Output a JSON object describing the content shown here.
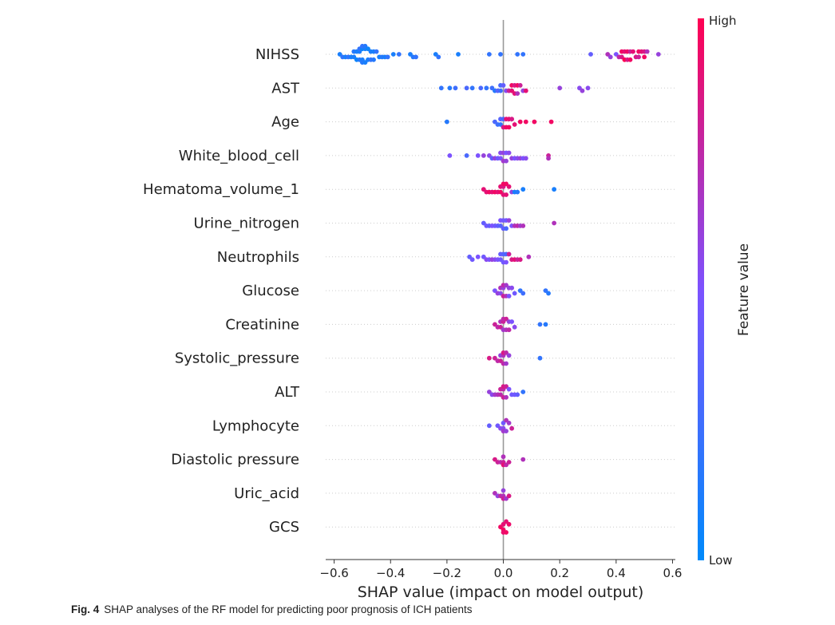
{
  "caption": {
    "label": "Fig. 4",
    "text": "SHAP analyses of the RF model for predicting poor prognosis of ICH patients"
  },
  "chart_data": {
    "type": "scatter",
    "subtype": "shap-beeswarm-summary",
    "xlabel": "SHAP value (impact on model output)",
    "xlim": [
      -0.63,
      0.61
    ],
    "xticks": [
      -0.6,
      -0.4,
      -0.2,
      0.0,
      0.2,
      0.4,
      0.6
    ],
    "xtick_labels": [
      "−0.6",
      "−0.4",
      "−0.2",
      "0.0",
      "0.2",
      "0.4",
      "0.6"
    ],
    "grid": false,
    "colorbar": {
      "label": "Feature value",
      "high_label": "High",
      "low_label": "Low",
      "low_color": "#008afb",
      "mid_color": "#7c52ff",
      "high_color": "#ff0052"
    },
    "features": [
      {
        "name": "NIHSS",
        "points": [
          [
            -0.58,
            0.1
          ],
          [
            -0.57,
            0.2
          ],
          [
            -0.56,
            0.1
          ],
          [
            -0.55,
            0.2
          ],
          [
            -0.54,
            0.1
          ],
          [
            -0.53,
            0.1
          ],
          [
            -0.53,
            0.15
          ],
          [
            -0.52,
            0.1
          ],
          [
            -0.52,
            0.05
          ],
          [
            -0.51,
            0.1
          ],
          [
            -0.51,
            0.15
          ],
          [
            -0.51,
            0.2
          ],
          [
            -0.5,
            0.1
          ],
          [
            -0.5,
            0.05
          ],
          [
            -0.5,
            0.15
          ],
          [
            -0.5,
            0.2
          ],
          [
            -0.49,
            0.1
          ],
          [
            -0.49,
            0.1
          ],
          [
            -0.49,
            0.15
          ],
          [
            -0.48,
            0.1
          ],
          [
            -0.48,
            0.05
          ],
          [
            -0.47,
            0.1
          ],
          [
            -0.47,
            0.2
          ],
          [
            -0.46,
            0.1
          ],
          [
            -0.46,
            0.15
          ],
          [
            -0.45,
            0.2
          ],
          [
            -0.44,
            0.1
          ],
          [
            -0.43,
            0.15
          ],
          [
            -0.42,
            0.1
          ],
          [
            -0.41,
            0.2
          ],
          [
            -0.39,
            0.1
          ],
          [
            -0.37,
            0.2
          ],
          [
            -0.33,
            0.1
          ],
          [
            -0.32,
            0.15
          ],
          [
            -0.31,
            0.2
          ],
          [
            -0.24,
            0.1
          ],
          [
            -0.23,
            0.2
          ],
          [
            -0.16,
            0.1
          ],
          [
            -0.05,
            0.2
          ],
          [
            -0.01,
            0.2
          ],
          [
            0.05,
            0.2
          ],
          [
            0.07,
            0.2
          ],
          [
            0.31,
            0.4
          ],
          [
            0.37,
            0.7
          ],
          [
            0.38,
            0.6
          ],
          [
            0.4,
            0.5
          ],
          [
            0.41,
            0.75
          ],
          [
            0.42,
            0.85
          ],
          [
            0.42,
            0.95
          ],
          [
            0.43,
            0.9
          ],
          [
            0.43,
            1.0
          ],
          [
            0.44,
            0.95
          ],
          [
            0.44,
            0.85
          ],
          [
            0.45,
            0.8
          ],
          [
            0.45,
            0.95
          ],
          [
            0.46,
            0.9
          ],
          [
            0.47,
            0.85
          ],
          [
            0.48,
            0.8
          ],
          [
            0.48,
            0.95
          ],
          [
            0.49,
            0.9
          ],
          [
            0.5,
            0.95
          ],
          [
            0.5,
            0.85
          ],
          [
            0.51,
            0.7
          ],
          [
            0.55,
            0.6
          ]
        ]
      },
      {
        "name": "AST",
        "points": [
          [
            -0.22,
            0.2
          ],
          [
            -0.19,
            0.15
          ],
          [
            -0.17,
            0.25
          ],
          [
            -0.13,
            0.3
          ],
          [
            -0.11,
            0.2
          ],
          [
            -0.08,
            0.3
          ],
          [
            -0.06,
            0.2
          ],
          [
            -0.04,
            0.25
          ],
          [
            -0.03,
            0.15
          ],
          [
            -0.02,
            0.35
          ],
          [
            -0.01,
            0.25
          ],
          [
            -0.01,
            0.3
          ],
          [
            0.0,
            0.4
          ],
          [
            0.01,
            0.55
          ],
          [
            0.02,
            0.8
          ],
          [
            0.03,
            0.9
          ],
          [
            0.03,
            0.95
          ],
          [
            0.04,
            0.85
          ],
          [
            0.04,
            0.9
          ],
          [
            0.05,
            0.95
          ],
          [
            0.05,
            0.7
          ],
          [
            0.06,
            0.8
          ],
          [
            0.07,
            0.6
          ],
          [
            0.08,
            0.9
          ],
          [
            0.2,
            0.6
          ],
          [
            0.27,
            0.55
          ],
          [
            0.28,
            0.6
          ],
          [
            0.3,
            0.55
          ]
        ]
      },
      {
        "name": "Age",
        "points": [
          [
            -0.2,
            0.15
          ],
          [
            -0.03,
            0.3
          ],
          [
            -0.02,
            0.25
          ],
          [
            -0.01,
            0.2
          ],
          [
            -0.01,
            0.35
          ],
          [
            0.0,
            0.3
          ],
          [
            0.0,
            0.85
          ],
          [
            0.01,
            0.9
          ],
          [
            0.01,
            0.95
          ],
          [
            0.02,
            0.9
          ],
          [
            0.02,
            0.95
          ],
          [
            0.03,
            0.85
          ],
          [
            0.04,
            0.9
          ],
          [
            0.06,
            0.95
          ],
          [
            0.08,
            0.95
          ],
          [
            0.11,
            0.95
          ],
          [
            0.17,
            0.95
          ]
        ]
      },
      {
        "name": "White_blood_cell",
        "points": [
          [
            -0.19,
            0.5
          ],
          [
            -0.13,
            0.3
          ],
          [
            -0.09,
            0.5
          ],
          [
            -0.07,
            0.6
          ],
          [
            -0.05,
            0.55
          ],
          [
            -0.04,
            0.4
          ],
          [
            -0.03,
            0.6
          ],
          [
            -0.02,
            0.45
          ],
          [
            -0.01,
            0.5
          ],
          [
            -0.01,
            0.55
          ],
          [
            0.0,
            0.6
          ],
          [
            0.0,
            0.65
          ],
          [
            0.01,
            0.5
          ],
          [
            0.01,
            0.6
          ],
          [
            0.02,
            0.55
          ],
          [
            0.03,
            0.6
          ],
          [
            0.04,
            0.5
          ],
          [
            0.05,
            0.55
          ],
          [
            0.06,
            0.6
          ],
          [
            0.07,
            0.5
          ],
          [
            0.08,
            0.55
          ],
          [
            0.16,
            0.8
          ],
          [
            0.16,
            0.7
          ]
        ]
      },
      {
        "name": "Hematoma_volume_1",
        "points": [
          [
            -0.07,
            0.9
          ],
          [
            -0.06,
            0.9
          ],
          [
            -0.05,
            0.95
          ],
          [
            -0.04,
            0.9
          ],
          [
            -0.03,
            0.95
          ],
          [
            -0.02,
            0.9
          ],
          [
            -0.01,
            0.95
          ],
          [
            -0.01,
            0.9
          ],
          [
            0.0,
            0.85
          ],
          [
            0.0,
            0.9
          ],
          [
            0.0,
            0.95
          ],
          [
            0.01,
            0.9
          ],
          [
            0.01,
            0.95
          ],
          [
            0.02,
            0.9
          ],
          [
            0.03,
            0.6
          ],
          [
            0.04,
            0.1
          ],
          [
            0.05,
            0.15
          ],
          [
            0.07,
            0.1
          ],
          [
            0.18,
            0.1
          ]
        ]
      },
      {
        "name": "Urine_nitrogen",
        "points": [
          [
            -0.07,
            0.4
          ],
          [
            -0.06,
            0.45
          ],
          [
            -0.05,
            0.4
          ],
          [
            -0.04,
            0.5
          ],
          [
            -0.03,
            0.45
          ],
          [
            -0.02,
            0.4
          ],
          [
            -0.01,
            0.35
          ],
          [
            -0.01,
            0.5
          ],
          [
            0.0,
            0.45
          ],
          [
            0.0,
            0.4
          ],
          [
            0.01,
            0.45
          ],
          [
            0.01,
            0.3
          ],
          [
            0.02,
            0.6
          ],
          [
            0.03,
            0.5
          ],
          [
            0.04,
            0.7
          ],
          [
            0.05,
            0.75
          ],
          [
            0.06,
            0.65
          ],
          [
            0.07,
            0.7
          ],
          [
            0.18,
            0.7
          ]
        ]
      },
      {
        "name": "Neutrophils",
        "points": [
          [
            -0.12,
            0.4
          ],
          [
            -0.11,
            0.45
          ],
          [
            -0.09,
            0.5
          ],
          [
            -0.07,
            0.45
          ],
          [
            -0.06,
            0.55
          ],
          [
            -0.05,
            0.5
          ],
          [
            -0.04,
            0.6
          ],
          [
            -0.03,
            0.55
          ],
          [
            -0.02,
            0.5
          ],
          [
            -0.01,
            0.45
          ],
          [
            -0.01,
            0.4
          ],
          [
            0.0,
            0.35
          ],
          [
            0.0,
            0.45
          ],
          [
            0.01,
            0.3
          ],
          [
            0.01,
            0.5
          ],
          [
            0.02,
            0.8
          ],
          [
            0.03,
            0.85
          ],
          [
            0.04,
            0.9
          ],
          [
            0.05,
            0.8
          ],
          [
            0.06,
            0.85
          ],
          [
            0.09,
            0.7
          ]
        ]
      },
      {
        "name": "Glucose",
        "points": [
          [
            -0.03,
            0.5
          ],
          [
            -0.02,
            0.6
          ],
          [
            -0.01,
            0.55
          ],
          [
            -0.01,
            0.7
          ],
          [
            0.0,
            0.6
          ],
          [
            0.0,
            0.8
          ],
          [
            0.0,
            0.75
          ],
          [
            0.01,
            0.7
          ],
          [
            0.01,
            0.65
          ],
          [
            0.02,
            0.6
          ],
          [
            0.02,
            0.5
          ],
          [
            0.03,
            0.55
          ],
          [
            0.04,
            0.45
          ],
          [
            0.06,
            0.2
          ],
          [
            0.07,
            0.25
          ],
          [
            0.15,
            0.2
          ],
          [
            0.16,
            0.15
          ]
        ]
      },
      {
        "name": "Creatinine",
        "points": [
          [
            -0.03,
            0.8
          ],
          [
            -0.02,
            0.75
          ],
          [
            -0.01,
            0.8
          ],
          [
            -0.01,
            0.7
          ],
          [
            0.0,
            0.8
          ],
          [
            0.0,
            0.65
          ],
          [
            0.0,
            0.75
          ],
          [
            0.01,
            0.7
          ],
          [
            0.01,
            0.8
          ],
          [
            0.02,
            0.6
          ],
          [
            0.02,
            0.75
          ],
          [
            0.03,
            0.5
          ],
          [
            0.04,
            0.55
          ],
          [
            0.13,
            0.2
          ],
          [
            0.15,
            0.15
          ]
        ]
      },
      {
        "name": "Systolic_pressure",
        "points": [
          [
            -0.05,
            0.85
          ],
          [
            -0.03,
            0.8
          ],
          [
            -0.02,
            0.75
          ],
          [
            -0.01,
            0.8
          ],
          [
            -0.01,
            0.6
          ],
          [
            0.0,
            0.7
          ],
          [
            0.0,
            0.75
          ],
          [
            0.0,
            0.85
          ],
          [
            0.01,
            0.65
          ],
          [
            0.01,
            0.75
          ],
          [
            0.02,
            0.6
          ],
          [
            0.13,
            0.2
          ]
        ]
      },
      {
        "name": "ALT",
        "points": [
          [
            -0.05,
            0.6
          ],
          [
            -0.04,
            0.55
          ],
          [
            -0.03,
            0.65
          ],
          [
            -0.02,
            0.7
          ],
          [
            -0.01,
            0.75
          ],
          [
            -0.01,
            0.8
          ],
          [
            0.0,
            0.75
          ],
          [
            0.0,
            0.8
          ],
          [
            0.0,
            0.85
          ],
          [
            0.01,
            0.7
          ],
          [
            0.01,
            0.8
          ],
          [
            0.02,
            0.5
          ],
          [
            0.03,
            0.45
          ],
          [
            0.04,
            0.45
          ],
          [
            0.05,
            0.4
          ],
          [
            0.07,
            0.2
          ]
        ]
      },
      {
        "name": "Lymphocyte",
        "points": [
          [
            -0.05,
            0.4
          ],
          [
            -0.02,
            0.45
          ],
          [
            -0.01,
            0.55
          ],
          [
            0.0,
            0.55
          ],
          [
            0.0,
            0.45
          ],
          [
            0.0,
            0.65
          ],
          [
            0.01,
            0.6
          ],
          [
            0.01,
            0.7
          ],
          [
            0.02,
            0.65
          ],
          [
            0.03,
            0.8
          ]
        ]
      },
      {
        "name": "Diastolic pressure",
        "points": [
          [
            -0.03,
            0.85
          ],
          [
            -0.02,
            0.8
          ],
          [
            -0.01,
            0.75
          ],
          [
            0.0,
            0.8
          ],
          [
            0.0,
            0.7
          ],
          [
            0.0,
            0.9
          ],
          [
            0.01,
            0.75
          ],
          [
            0.02,
            0.8
          ],
          [
            0.07,
            0.7
          ]
        ]
      },
      {
        "name": "Uric_acid",
        "points": [
          [
            -0.03,
            0.7
          ],
          [
            -0.02,
            0.6
          ],
          [
            -0.01,
            0.75
          ],
          [
            0.0,
            0.7
          ],
          [
            0.0,
            0.6
          ],
          [
            0.0,
            0.8
          ],
          [
            0.01,
            0.65
          ],
          [
            0.02,
            0.85
          ]
        ]
      },
      {
        "name": "GCS",
        "points": [
          [
            -0.01,
            0.95
          ],
          [
            0.0,
            0.95
          ],
          [
            0.0,
            0.9
          ],
          [
            0.0,
            0.92
          ],
          [
            0.01,
            0.95
          ],
          [
            0.01,
            0.9
          ],
          [
            0.02,
            0.93
          ]
        ]
      }
    ]
  }
}
